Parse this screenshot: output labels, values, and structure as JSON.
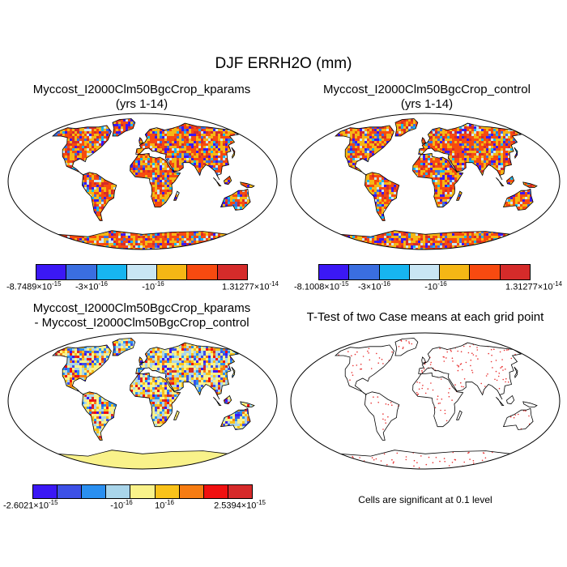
{
  "title": "DJF ERRH2O (mm)",
  "panels": {
    "kparams": {
      "title_line1": "Myccost_I2000Clm50BgcCrop_kparams",
      "title_line2": "(yrs 1-14)",
      "colorbar": {
        "colors": [
          "#3b18f5",
          "#3a6ee0",
          "#17b5f0",
          "#c9e6f4",
          "#f5b715",
          "#f74a10",
          "#d52b2a"
        ],
        "labels": [
          {
            "mant": "-8.7489×10",
            "exp": "-15"
          },
          {
            "mant": "-3×10",
            "exp": "-16"
          },
          {
            "mant": "-10",
            "exp": "-16"
          },
          {
            "mant": "1.31277×10",
            "exp": "-14"
          }
        ]
      }
    },
    "control": {
      "title_line1": "Myccost_I2000Clm50BgcCrop_control",
      "title_line2": "(yrs 1-14)",
      "colorbar": {
        "colors": [
          "#3b18f5",
          "#3a6ee0",
          "#17b5f0",
          "#c9e6f4",
          "#f5b715",
          "#f74a10",
          "#d52b2a"
        ],
        "labels": [
          {
            "mant": "-8.1008×10",
            "exp": "-15"
          },
          {
            "mant": "-3×10",
            "exp": "-16"
          },
          {
            "mant": "-10",
            "exp": "-16"
          },
          {
            "mant": "1.31277×10",
            "exp": "-14"
          }
        ]
      }
    },
    "difference": {
      "title_line1": "Myccost_I2000Clm50BgcCrop_kparams",
      "title_line2": "- Myccost_I2000Clm50BgcCrop_control",
      "colorbar": {
        "colors": [
          "#3b18f5",
          "#3d50e6",
          "#2a8ff0",
          "#a9d5ea",
          "#f9f28a",
          "#f9c21a",
          "#f67c12",
          "#f01010",
          "#d62a2a"
        ],
        "labels": [
          {
            "mant": "-2.6021×10",
            "exp": "-15"
          },
          {
            "mant": "-10",
            "exp": "-16"
          },
          {
            "mant": "10",
            "exp": "-16"
          },
          {
            "mant": "2.5394×10",
            "exp": "-15"
          }
        ]
      }
    },
    "ttest": {
      "title": "T-Test of two Case means at each grid point",
      "caption": "Cells are significant at 0.1 level",
      "marker_color": "#e83030"
    }
  }
}
